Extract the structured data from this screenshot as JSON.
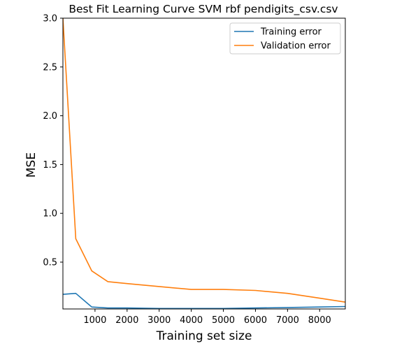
{
  "chart_data": {
    "type": "line",
    "title": "Best Fit Learning Curve SVM rbf pendigits_csv.csv",
    "xlabel": "Training set size",
    "ylabel": "MSE",
    "xlim": [
      0,
      8800
    ],
    "ylim": [
      0.02,
      3.0
    ],
    "xticks": [
      1000,
      2000,
      3000,
      4000,
      5000,
      6000,
      7000,
      8000
    ],
    "yticks": [
      0.5,
      1.0,
      1.5,
      2.0,
      2.5,
      3.0
    ],
    "grid": false,
    "legend_position": "top-right",
    "series": [
      {
        "name": "Training error",
        "color": "#1f77b4",
        "x": [
          0,
          400,
          900,
          1400,
          2000,
          3000,
          4000,
          5000,
          6000,
          7000,
          8000,
          8800
        ],
        "y": [
          0.17,
          0.18,
          0.04,
          0.03,
          0.03,
          0.025,
          0.025,
          0.025,
          0.03,
          0.035,
          0.04,
          0.045
        ]
      },
      {
        "name": "Validation error",
        "color": "#ff7f0e",
        "x": [
          0,
          400,
          900,
          1400,
          2000,
          3000,
          4000,
          5000,
          6000,
          7000,
          8000,
          8800
        ],
        "y": [
          3.0,
          0.74,
          0.41,
          0.3,
          0.28,
          0.25,
          0.22,
          0.22,
          0.21,
          0.18,
          0.13,
          0.09
        ]
      }
    ]
  }
}
